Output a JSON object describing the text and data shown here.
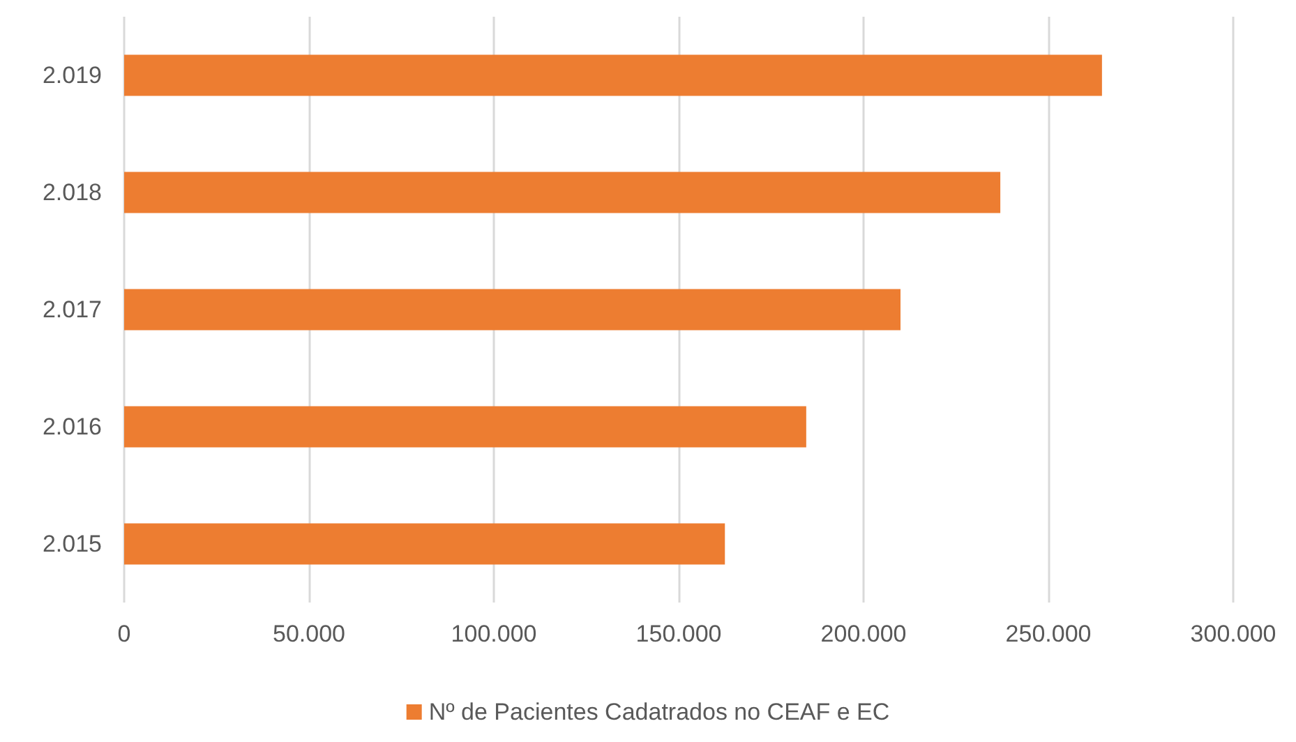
{
  "chart_data": {
    "type": "bar",
    "orientation": "horizontal",
    "categories": [
      "2.019",
      "2.018",
      "2.017",
      "2.016",
      "2.015"
    ],
    "series": [
      {
        "name": "Nº de Pacientes Cadatrados no CEAF e EC",
        "color": "#ed7d31",
        "values": [
          264500,
          237000,
          210000,
          184500,
          162500
        ]
      }
    ],
    "xlim": [
      0,
      300000
    ],
    "xticks": [
      0,
      {
        "value": 50000,
        "label": "50.000"
      },
      {
        "value": 100000,
        "label": "100.000"
      },
      {
        "value": 150000,
        "label": "150.000"
      },
      {
        "value": 200000,
        "label": "200.000"
      },
      {
        "value": 250000,
        "label": "250.000"
      },
      {
        "value": 300000,
        "label": "300.000"
      }
    ],
    "grid": "x",
    "legend": "bottom"
  }
}
